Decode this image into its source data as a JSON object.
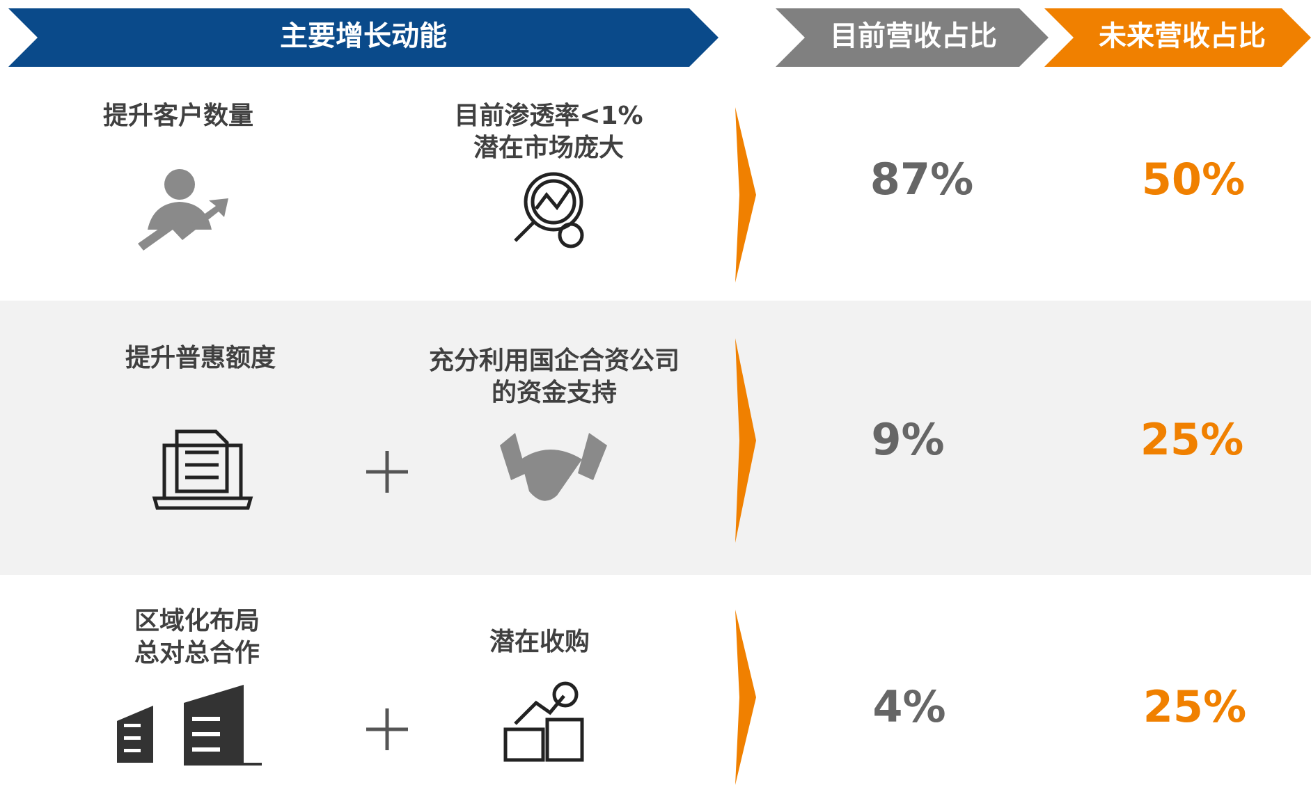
{
  "header": {
    "drivers": "主要增长动能",
    "current": "目前营收占比",
    "future": "未来营收占比"
  },
  "rows": [
    {
      "left": [
        "提升客户数量"
      ],
      "right": [
        "目前渗透率<1%",
        "潜在市场庞大"
      ],
      "current": "87%",
      "future": "50%"
    },
    {
      "left": [
        "提升普惠额度"
      ],
      "right": [
        "充分利用国企合资公司",
        "的资金支持"
      ],
      "current": "9%",
      "future": "25%"
    },
    {
      "left": [
        "区域化布局",
        "总对总合作"
      ],
      "right": [
        "潜在收购"
      ],
      "current": "4%",
      "future": "25%"
    }
  ]
}
